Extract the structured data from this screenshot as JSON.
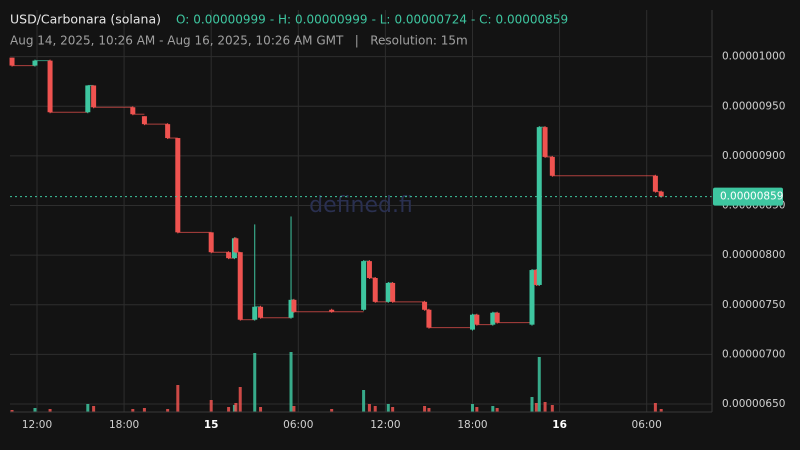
{
  "chart_data": {
    "type": "candlestick",
    "title": "USD/Carbonara (solana)",
    "stats": [
      {
        "label": "O:",
        "value": 9.99e-06
      },
      {
        "label": "- H:",
        "value": 9.99e-06
      },
      {
        "label": "- L:",
        "value": 7.24e-06
      },
      {
        "label": "- C:",
        "value": 8.59e-06
      }
    ],
    "subtitle": "Aug 14, 2025, 10:26 AM - Aug 16, 2025, 10:26 AM GMT   |   Resolution: 15m",
    "watermark": "defined.fi",
    "last_price": 8.59e-06,
    "up_color": "#3ec6a0",
    "down_color": "#ef5350",
    "grid": true,
    "xlim": [
      10.14,
      58.5
    ],
    "xticks": [
      {
        "value": 12,
        "label": "12:00"
      },
      {
        "value": 18,
        "label": "18:00"
      },
      {
        "value": 24,
        "label": "15"
      },
      {
        "value": 30,
        "label": "06:00"
      },
      {
        "value": 36,
        "label": "12:00"
      },
      {
        "value": 42,
        "label": "18:00"
      },
      {
        "value": 48,
        "label": "16"
      },
      {
        "value": 54,
        "label": "06:00"
      }
    ],
    "ylim": [
      6.42e-06,
      1.047e-05
    ],
    "yticks": [
      {
        "value": 6.5e-06,
        "label": "0.00000650"
      },
      {
        "value": 7e-06,
        "label": "0.00000700"
      },
      {
        "value": 7.5e-06,
        "label": "0.00000750"
      },
      {
        "value": 8e-06,
        "label": "0.00000800"
      },
      {
        "value": 8.5e-06,
        "label": "0.00000850"
      },
      {
        "value": 9e-06,
        "label": "0.00000900"
      },
      {
        "value": 9.5e-06,
        "label": "0.00000950"
      },
      {
        "value": 1e-05,
        "label": "0.00001000"
      }
    ],
    "candles": [
      {
        "x": 10.28,
        "open": 9.99e-06,
        "high": 9.99e-06,
        "low": 9.9e-06,
        "close": 9.91e-06,
        "volume": 2
      },
      {
        "x": 11.86,
        "open": 9.91e-06,
        "high": 9.97e-06,
        "low": 9.9e-06,
        "close": 9.96e-06,
        "volume": 4
      },
      {
        "x": 12.9,
        "open": 9.96e-06,
        "high": 9.97e-06,
        "low": 9.43e-06,
        "close": 9.44e-06,
        "volume": 3
      },
      {
        "x": 15.5,
        "open": 9.44e-06,
        "high": 9.71e-06,
        "low": 9.43e-06,
        "close": 9.71e-06,
        "volume": 8
      },
      {
        "x": 15.9,
        "open": 9.71e-06,
        "high": 9.71e-06,
        "low": 9.48e-06,
        "close": 9.49e-06,
        "volume": 6
      },
      {
        "x": 18.6,
        "open": 9.49e-06,
        "high": 9.5e-06,
        "low": 9.41e-06,
        "close": 9.42e-06,
        "volume": 3
      },
      {
        "x": 19.4,
        "open": 9.4e-06,
        "high": 9.4e-06,
        "low": 9.31e-06,
        "close": 9.32e-06,
        "volume": 4
      },
      {
        "x": 21.0,
        "open": 9.32e-06,
        "high": 9.33e-06,
        "low": 9.17e-06,
        "close": 9.18e-06,
        "volume": 3
      },
      {
        "x": 21.7,
        "open": 9.18e-06,
        "high": 9.18e-06,
        "low": 8.22e-06,
        "close": 8.23e-06,
        "volume": 27
      },
      {
        "x": 24.0,
        "open": 8.23e-06,
        "high": 8.23e-06,
        "low": 8.02e-06,
        "close": 8.03e-06,
        "volume": 12
      },
      {
        "x": 25.2,
        "open": 8.03e-06,
        "high": 8.04e-06,
        "low": 7.96e-06,
        "close": 7.97e-06,
        "volume": 5
      },
      {
        "x": 25.6,
        "open": 7.97e-06,
        "high": 8.18e-06,
        "low": 7.96e-06,
        "close": 8.17e-06,
        "volume": 7
      },
      {
        "x": 25.7,
        "open": 8.17e-06,
        "high": 8.18e-06,
        "low": 8.02e-06,
        "close": 8.03e-06,
        "volume": 9
      },
      {
        "x": 26.0,
        "open": 8.03e-06,
        "high": 8.03e-06,
        "low": 7.34e-06,
        "close": 7.35e-06,
        "volume": 25
      },
      {
        "x": 27.0,
        "open": 7.35e-06,
        "high": 8.31e-06,
        "low": 7.34e-06,
        "close": 7.48e-06,
        "volume": 59
      },
      {
        "x": 27.4,
        "open": 7.48e-06,
        "high": 7.49e-06,
        "low": 7.36e-06,
        "close": 7.37e-06,
        "volume": 5
      },
      {
        "x": 29.5,
        "open": 7.37e-06,
        "high": 8.39e-06,
        "low": 7.36e-06,
        "close": 7.55e-06,
        "volume": 60
      },
      {
        "x": 29.7,
        "open": 7.55e-06,
        "high": 7.56e-06,
        "low": 7.42e-06,
        "close": 7.43e-06,
        "volume": 6
      },
      {
        "x": 32.3,
        "open": 7.45e-06,
        "high": 7.46e-06,
        "low": 7.42e-06,
        "close": 7.43e-06,
        "volume": 3
      },
      {
        "x": 34.5,
        "open": 7.45e-06,
        "high": 7.95e-06,
        "low": 7.44e-06,
        "close": 7.94e-06,
        "volume": 22
      },
      {
        "x": 34.9,
        "open": 7.94e-06,
        "high": 7.95e-06,
        "low": 7.76e-06,
        "close": 7.77e-06,
        "volume": 8
      },
      {
        "x": 35.3,
        "open": 7.77e-06,
        "high": 7.78e-06,
        "low": 7.52e-06,
        "close": 7.53e-06,
        "volume": 6
      },
      {
        "x": 36.2,
        "open": 7.53e-06,
        "high": 7.73e-06,
        "low": 7.52e-06,
        "close": 7.72e-06,
        "volume": 8
      },
      {
        "x": 36.5,
        "open": 7.72e-06,
        "high": 7.73e-06,
        "low": 7.52e-06,
        "close": 7.53e-06,
        "volume": 5
      },
      {
        "x": 38.7,
        "open": 7.53e-06,
        "high": 7.54e-06,
        "low": 7.44e-06,
        "close": 7.45e-06,
        "volume": 6
      },
      {
        "x": 39.0,
        "open": 7.45e-06,
        "high": 7.46e-06,
        "low": 7.26e-06,
        "close": 7.27e-06,
        "volume": 4
      },
      {
        "x": 42.0,
        "open": 7.25e-06,
        "high": 7.41e-06,
        "low": 7.24e-06,
        "close": 7.4e-06,
        "volume": 8
      },
      {
        "x": 42.3,
        "open": 7.4e-06,
        "high": 7.41e-06,
        "low": 7.29e-06,
        "close": 7.3e-06,
        "volume": 5
      },
      {
        "x": 43.4,
        "open": 7.3e-06,
        "high": 7.43e-06,
        "low": 7.29e-06,
        "close": 7.42e-06,
        "volume": 6
      },
      {
        "x": 43.7,
        "open": 7.42e-06,
        "high": 7.43e-06,
        "low": 7.31e-06,
        "close": 7.32e-06,
        "volume": 4
      },
      {
        "x": 46.1,
        "open": 7.3e-06,
        "high": 7.86e-06,
        "low": 7.29e-06,
        "close": 7.85e-06,
        "volume": 15
      },
      {
        "x": 46.4,
        "open": 7.85e-06,
        "high": 7.86e-06,
        "low": 7.69e-06,
        "close": 7.7e-06,
        "volume": 9
      },
      {
        "x": 46.6,
        "open": 7.7e-06,
        "high": 9.3e-06,
        "low": 7.69e-06,
        "close": 9.29e-06,
        "volume": 55
      },
      {
        "x": 47.0,
        "open": 9.29e-06,
        "high": 9.3e-06,
        "low": 8.98e-06,
        "close": 8.99e-06,
        "volume": 10
      },
      {
        "x": 47.5,
        "open": 8.99e-06,
        "high": 9e-06,
        "low": 8.79e-06,
        "close": 8.8e-06,
        "volume": 7
      },
      {
        "x": 54.6,
        "open": 8.8e-06,
        "high": 8.81e-06,
        "low": 8.63e-06,
        "close": 8.64e-06,
        "volume": 9
      },
      {
        "x": 55.0,
        "open": 8.64e-06,
        "high": 8.65e-06,
        "low": 8.58e-06,
        "close": 8.59e-06,
        "volume": 3
      }
    ]
  }
}
